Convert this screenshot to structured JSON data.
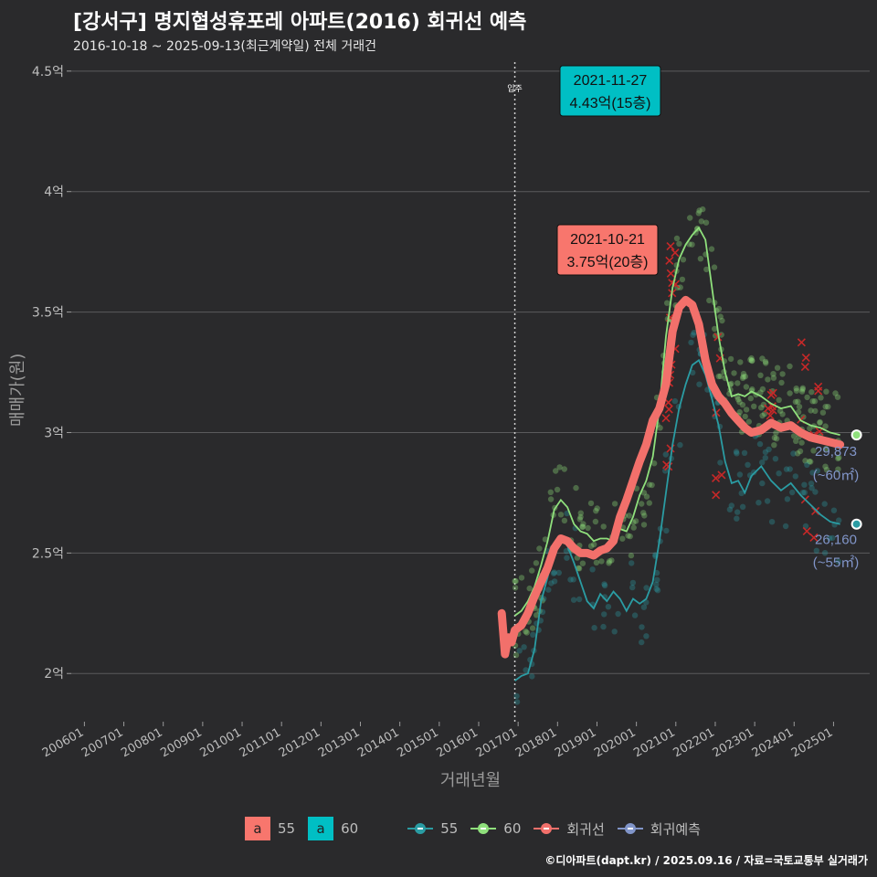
{
  "title": "[강서구] 명지협성휴포레 아파트(2016) 회귀선 예측",
  "subtitle": "2016-10-18 ~ 2025-09-13(최근계약일) 전체 거래건",
  "credit": "©디아파트(dapt.kr) / 2025.09.16 / 자료=국토교통부 실거래가",
  "colors": {
    "background": "#2a2a2c",
    "grid": "#5b5b5d",
    "series_55": "#2a9ca3",
    "series_60": "#8fe07c",
    "regression": "#f2706b",
    "forecast": "#8195c9",
    "label_55_fill": "#f8766d",
    "label_60_fill": "#00bfc4",
    "cancelled": "#c62828"
  },
  "chart_data": {
    "type": "line",
    "title": "[강서구] 명지협성휴포레 아파트(2016) 회귀선 예측",
    "subtitle": "2016-10-18 ~ 2025-09-13(최근계약일) 전체 거래건",
    "xlabel": "거래년월",
    "ylabel": "매매가(원)",
    "x_tick_labels": [
      "200601",
      "200701",
      "200801",
      "200901",
      "201001",
      "201101",
      "201201",
      "201301",
      "201401",
      "201501",
      "201601",
      "201701",
      "201801",
      "201901",
      "202001",
      "202101",
      "202201",
      "202301",
      "202401",
      "202501"
    ],
    "y_ticks": [
      2,
      2.5,
      3,
      3.5,
      4,
      4.5
    ],
    "y_tick_labels": [
      "2억",
      "2.5억",
      "3억",
      "3.5억",
      "4억",
      "4.5억"
    ],
    "ylim": [
      1.8,
      4.56
    ],
    "xlim": [
      "2005-09",
      "2025-12"
    ],
    "grid": true,
    "legend_position": "bottom",
    "move_in_line": {
      "date": "2016-12",
      "label": "입주"
    },
    "series": [
      {
        "name": "55",
        "type": "line",
        "points": [
          [
            "2016-12",
            1.97
          ],
          [
            "2017-02",
            1.99
          ],
          [
            "2017-04",
            2.0
          ],
          [
            "2017-06",
            2.1
          ],
          [
            "2017-08",
            2.3
          ],
          [
            "2017-10",
            2.4
          ],
          [
            "2017-12",
            2.52
          ],
          [
            "2018-02",
            2.56
          ],
          [
            "2018-04",
            2.53
          ],
          [
            "2018-06",
            2.46
          ],
          [
            "2018-08",
            2.38
          ],
          [
            "2018-10",
            2.3
          ],
          [
            "2018-12",
            2.27
          ],
          [
            "2019-02",
            2.33
          ],
          [
            "2019-04",
            2.3
          ],
          [
            "2019-06",
            2.34
          ],
          [
            "2019-08",
            2.31
          ],
          [
            "2019-10",
            2.26
          ],
          [
            "2019-12",
            2.31
          ],
          [
            "2020-02",
            2.29
          ],
          [
            "2020-04",
            2.31
          ],
          [
            "2020-06",
            2.38
          ],
          [
            "2020-08",
            2.55
          ],
          [
            "2020-10",
            2.75
          ],
          [
            "2020-12",
            2.95
          ],
          [
            "2021-02",
            3.1
          ],
          [
            "2021-04",
            3.2
          ],
          [
            "2021-06",
            3.28
          ],
          [
            "2021-08",
            3.3
          ],
          [
            "2021-10",
            3.24
          ],
          [
            "2021-12",
            3.14
          ],
          [
            "2022-02",
            3.03
          ],
          [
            "2022-04",
            2.88
          ],
          [
            "2022-06",
            2.79
          ],
          [
            "2022-08",
            2.8
          ],
          [
            "2022-10",
            2.75
          ],
          [
            "2022-12",
            2.82
          ],
          [
            "2023-03",
            2.86
          ],
          [
            "2023-06",
            2.8
          ],
          [
            "2023-09",
            2.76
          ],
          [
            "2023-12",
            2.79
          ],
          [
            "2024-03",
            2.74
          ],
          [
            "2024-06",
            2.7
          ],
          [
            "2024-09",
            2.66
          ],
          [
            "2024-12",
            2.63
          ],
          [
            "2025-03",
            2.62
          ]
        ]
      },
      {
        "name": "60",
        "type": "line",
        "points": [
          [
            "2016-12",
            2.24
          ],
          [
            "2017-02",
            2.26
          ],
          [
            "2017-04",
            2.3
          ],
          [
            "2017-06",
            2.36
          ],
          [
            "2017-08",
            2.45
          ],
          [
            "2017-10",
            2.55
          ],
          [
            "2017-12",
            2.68
          ],
          [
            "2018-02",
            2.72
          ],
          [
            "2018-04",
            2.69
          ],
          [
            "2018-06",
            2.62
          ],
          [
            "2018-08",
            2.59
          ],
          [
            "2018-10",
            2.58
          ],
          [
            "2018-12",
            2.55
          ],
          [
            "2019-02",
            2.56
          ],
          [
            "2019-04",
            2.56
          ],
          [
            "2019-06",
            2.55
          ],
          [
            "2019-08",
            2.6
          ],
          [
            "2019-10",
            2.59
          ],
          [
            "2019-12",
            2.65
          ],
          [
            "2020-02",
            2.74
          ],
          [
            "2020-04",
            2.8
          ],
          [
            "2020-06",
            2.9
          ],
          [
            "2020-08",
            3.1
          ],
          [
            "2020-10",
            3.4
          ],
          [
            "2020-12",
            3.6
          ],
          [
            "2021-02",
            3.72
          ],
          [
            "2021-04",
            3.78
          ],
          [
            "2021-06",
            3.82
          ],
          [
            "2021-08",
            3.85
          ],
          [
            "2021-10",
            3.8
          ],
          [
            "2021-12",
            3.6
          ],
          [
            "2022-02",
            3.4
          ],
          [
            "2022-04",
            3.25
          ],
          [
            "2022-06",
            3.15
          ],
          [
            "2022-08",
            3.16
          ],
          [
            "2022-10",
            3.15
          ],
          [
            "2022-12",
            3.17
          ],
          [
            "2023-03",
            3.15
          ],
          [
            "2023-06",
            3.12
          ],
          [
            "2023-09",
            3.1
          ],
          [
            "2023-12",
            3.11
          ],
          [
            "2024-03",
            3.05
          ],
          [
            "2024-06",
            3.03
          ],
          [
            "2024-09",
            3.02
          ],
          [
            "2024-12",
            3.0
          ],
          [
            "2025-03",
            2.99
          ]
        ]
      },
      {
        "name": "회귀선",
        "type": "line",
        "points": [
          [
            "2016-08",
            2.25
          ],
          [
            "2016-09",
            2.08
          ],
          [
            "2016-10",
            2.15
          ],
          [
            "2016-11",
            2.13
          ],
          [
            "2016-12",
            2.18
          ],
          [
            "2017-02",
            2.2
          ],
          [
            "2017-04",
            2.25
          ],
          [
            "2017-06",
            2.32
          ],
          [
            "2017-08",
            2.38
          ],
          [
            "2017-10",
            2.44
          ],
          [
            "2017-12",
            2.52
          ],
          [
            "2018-02",
            2.56
          ],
          [
            "2018-04",
            2.55
          ],
          [
            "2018-06",
            2.52
          ],
          [
            "2018-08",
            2.5
          ],
          [
            "2018-10",
            2.5
          ],
          [
            "2018-12",
            2.49
          ],
          [
            "2019-02",
            2.51
          ],
          [
            "2019-04",
            2.52
          ],
          [
            "2019-06",
            2.55
          ],
          [
            "2019-08",
            2.65
          ],
          [
            "2019-10",
            2.72
          ],
          [
            "2019-12",
            2.8
          ],
          [
            "2020-02",
            2.88
          ],
          [
            "2020-04",
            2.95
          ],
          [
            "2020-06",
            3.05
          ],
          [
            "2020-08",
            3.1
          ],
          [
            "2020-10",
            3.2
          ],
          [
            "2020-12",
            3.42
          ],
          [
            "2021-02",
            3.52
          ],
          [
            "2021-04",
            3.55
          ],
          [
            "2021-06",
            3.53
          ],
          [
            "2021-08",
            3.45
          ],
          [
            "2021-10",
            3.3
          ],
          [
            "2021-12",
            3.2
          ],
          [
            "2022-02",
            3.15
          ],
          [
            "2022-04",
            3.12
          ],
          [
            "2022-06",
            3.08
          ],
          [
            "2022-08",
            3.05
          ],
          [
            "2022-10",
            3.02
          ],
          [
            "2022-12",
            3.0
          ],
          [
            "2023-03",
            3.01
          ],
          [
            "2023-06",
            3.04
          ],
          [
            "2023-09",
            3.02
          ],
          [
            "2023-12",
            3.03
          ],
          [
            "2024-03",
            3.0
          ],
          [
            "2024-06",
            2.98
          ],
          [
            "2024-09",
            2.97
          ],
          [
            "2024-12",
            2.96
          ],
          [
            "2025-03",
            2.95
          ]
        ]
      },
      {
        "name": "회귀예측",
        "type": "point",
        "points": [
          [
            "2025-08",
            2.99
          ],
          [
            "2025-08",
            2.62
          ]
        ]
      }
    ],
    "end_labels": [
      {
        "value": "29,873",
        "area": "(~60㎡)"
      },
      {
        "value": "26,160",
        "area": "(~55㎡)"
      }
    ],
    "annotations": [
      {
        "date": "2021-11-27",
        "text": "4.43억(15층)",
        "series": "60",
        "x": "2021-11",
        "y": 4.43
      },
      {
        "date": "2021-10-21",
        "text": "3.75억(20층)",
        "series": "55",
        "x": "2021-10",
        "y": 3.75
      }
    ]
  },
  "axis": {
    "xlabel": "거래년월",
    "ylabel": "매매가(원)"
  },
  "legend": {
    "fills": [
      {
        "key": "a",
        "label": "55"
      },
      {
        "key": "a",
        "label": "60"
      }
    ],
    "lines": [
      {
        "label": "55"
      },
      {
        "label": "60"
      },
      {
        "label": "회귀선"
      },
      {
        "label": "회귀예측"
      }
    ]
  }
}
